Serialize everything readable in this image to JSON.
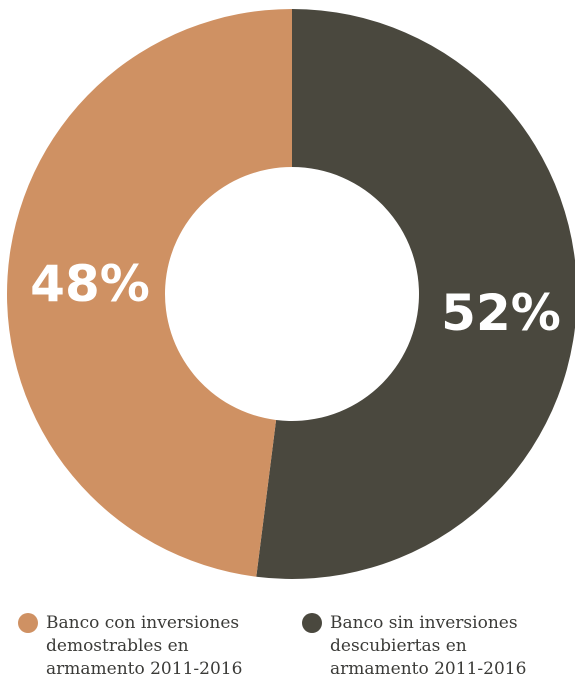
{
  "chart_data": {
    "type": "pie",
    "title": "",
    "donut": true,
    "slices": [
      {
        "label": "Banco sin inversiones descubiertas en armamento 2011-2016",
        "value": 52,
        "display": "52%",
        "color": "#4a483e"
      },
      {
        "label": "Banco con inversiones demostrables en armamento 2011-2016",
        "value": 48,
        "display": "48%",
        "color": "#cf9163"
      }
    ],
    "legend_position": "bottom"
  },
  "legend": [
    {
      "text": "Banco con inversiones\ndemostrables en\narmamento 2011-2016",
      "color": "#cf9163"
    },
    {
      "text": "Banco sin inversiones\ndescubiertas en\narmamento 2011-2016",
      "color": "#4a483e"
    }
  ]
}
